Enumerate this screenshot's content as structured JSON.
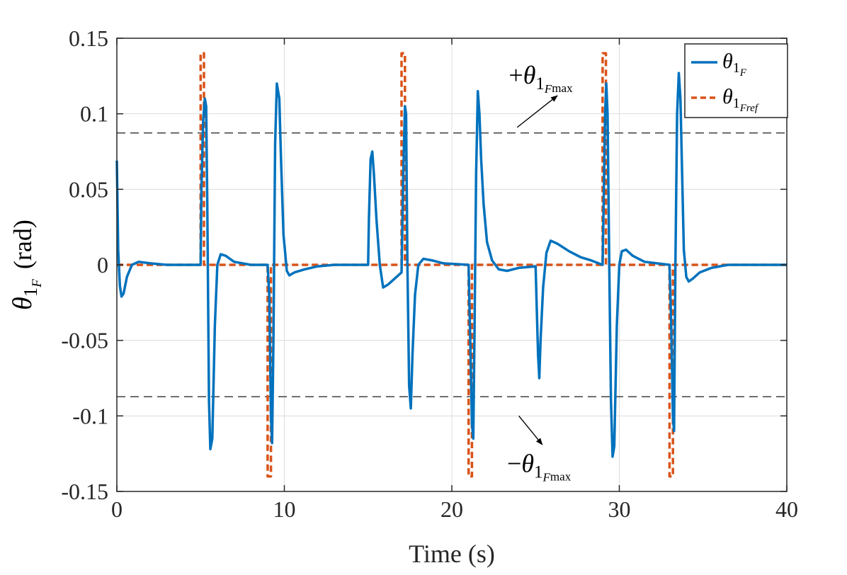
{
  "chart_data": {
    "type": "line",
    "xlabel": "Time (s)",
    "ylabel": "θ1F (rad)",
    "ylabel_parts": {
      "symbol": "θ",
      "sub": "1",
      "subsub": "F",
      "unit": "(rad)"
    },
    "xlim": [
      0,
      40
    ],
    "ylim": [
      -0.15,
      0.15
    ],
    "xticks": [
      0,
      10,
      20,
      30,
      40
    ],
    "xtick_labels": [
      "0",
      "10",
      "20",
      "30",
      "40"
    ],
    "yticks": [
      0.15,
      0.1,
      0.05,
      0,
      -0.05,
      -0.1,
      -0.15
    ],
    "ytick_labels": [
      "0.15",
      "0.1",
      "0.05",
      "0",
      "-0.05",
      "-0.1",
      "-0.15"
    ],
    "grid": true,
    "legend_position": "top-right",
    "colors": {
      "actual": "#0072BD",
      "reference": "#D95319",
      "limit": "#404040",
      "annotation": "#000000"
    },
    "series": [
      {
        "name": "θ1F",
        "legend_parts": {
          "symbol": "θ",
          "sub": "1",
          "subsub": "F"
        },
        "style": "solid",
        "points": [
          [
            0.0,
            0.069
          ],
          [
            0.08,
            0.01
          ],
          [
            0.18,
            -0.014
          ],
          [
            0.28,
            -0.021
          ],
          [
            0.4,
            -0.019
          ],
          [
            0.6,
            -0.008
          ],
          [
            0.9,
            0.0
          ],
          [
            1.3,
            0.002
          ],
          [
            2.0,
            0.001
          ],
          [
            3.0,
            0.0
          ],
          [
            5.0,
            0.0
          ],
          [
            5.05,
            0.05
          ],
          [
            5.15,
            0.095
          ],
          [
            5.25,
            0.11
          ],
          [
            5.33,
            0.105
          ],
          [
            5.4,
            0.04
          ],
          [
            5.5,
            -0.09
          ],
          [
            5.58,
            -0.122
          ],
          [
            5.7,
            -0.115
          ],
          [
            5.85,
            -0.04
          ],
          [
            6.0,
            0.0
          ],
          [
            6.2,
            0.007
          ],
          [
            6.5,
            0.006
          ],
          [
            7.0,
            0.002
          ],
          [
            8.0,
            0.0
          ],
          [
            9.0,
            0.0
          ],
          [
            9.1,
            -0.02
          ],
          [
            9.2,
            -0.1
          ],
          [
            9.27,
            -0.118
          ],
          [
            9.35,
            -0.05
          ],
          [
            9.45,
            0.08
          ],
          [
            9.55,
            0.12
          ],
          [
            9.7,
            0.11
          ],
          [
            9.8,
            0.07
          ],
          [
            9.95,
            0.02
          ],
          [
            10.15,
            -0.004
          ],
          [
            10.3,
            -0.007
          ],
          [
            10.6,
            -0.005
          ],
          [
            11.2,
            -0.003
          ],
          [
            12.0,
            -0.001
          ],
          [
            13.0,
            0.0
          ],
          [
            15.0,
            0.0
          ],
          [
            15.05,
            0.03
          ],
          [
            15.15,
            0.07
          ],
          [
            15.25,
            0.075
          ],
          [
            15.35,
            0.06
          ],
          [
            15.5,
            0.03
          ],
          [
            15.7,
            0.0
          ],
          [
            15.9,
            -0.015
          ],
          [
            16.2,
            -0.013
          ],
          [
            16.5,
            -0.01
          ],
          [
            16.8,
            -0.007
          ],
          [
            17.0,
            -0.005
          ],
          [
            17.1,
            0.06
          ],
          [
            17.2,
            0.105
          ],
          [
            17.27,
            0.1
          ],
          [
            17.35,
            0.0
          ],
          [
            17.45,
            -0.08
          ],
          [
            17.55,
            -0.095
          ],
          [
            17.65,
            -0.06
          ],
          [
            17.8,
            -0.02
          ],
          [
            18.0,
            0.0
          ],
          [
            18.3,
            0.004
          ],
          [
            18.8,
            0.003
          ],
          [
            19.5,
            0.001
          ],
          [
            21.0,
            0.0
          ],
          [
            21.1,
            -0.05
          ],
          [
            21.2,
            -0.105
          ],
          [
            21.28,
            -0.115
          ],
          [
            21.35,
            -0.05
          ],
          [
            21.45,
            0.06
          ],
          [
            21.55,
            0.115
          ],
          [
            21.65,
            0.1
          ],
          [
            21.75,
            0.07
          ],
          [
            21.9,
            0.04
          ],
          [
            22.1,
            0.015
          ],
          [
            22.4,
            0.003
          ],
          [
            22.8,
            -0.003
          ],
          [
            23.3,
            -0.004
          ],
          [
            24.0,
            -0.002
          ],
          [
            25.0,
            -0.001
          ],
          [
            25.05,
            -0.02
          ],
          [
            25.15,
            -0.06
          ],
          [
            25.22,
            -0.075
          ],
          [
            25.3,
            -0.05
          ],
          [
            25.45,
            -0.015
          ],
          [
            25.65,
            0.008
          ],
          [
            25.9,
            0.016
          ],
          [
            26.3,
            0.014
          ],
          [
            27.0,
            0.009
          ],
          [
            27.7,
            0.005
          ],
          [
            28.3,
            0.003
          ],
          [
            29.0,
            0.0
          ],
          [
            29.05,
            0.03
          ],
          [
            29.15,
            0.1
          ],
          [
            29.22,
            0.12
          ],
          [
            29.3,
            0.1
          ],
          [
            29.4,
            0.0
          ],
          [
            29.5,
            -0.09
          ],
          [
            29.6,
            -0.127
          ],
          [
            29.7,
            -0.12
          ],
          [
            29.85,
            -0.04
          ],
          [
            30.0,
            0.0
          ],
          [
            30.15,
            0.009
          ],
          [
            30.4,
            0.01
          ],
          [
            30.8,
            0.006
          ],
          [
            31.5,
            0.002
          ],
          [
            33.0,
            0.0
          ],
          [
            33.1,
            -0.04
          ],
          [
            33.2,
            -0.1
          ],
          [
            33.27,
            -0.11
          ],
          [
            33.35,
            0.0
          ],
          [
            33.45,
            0.1
          ],
          [
            33.55,
            0.127
          ],
          [
            33.65,
            0.11
          ],
          [
            33.75,
            0.06
          ],
          [
            33.85,
            0.01
          ],
          [
            34.0,
            -0.008
          ],
          [
            34.15,
            -0.011
          ],
          [
            34.4,
            -0.009
          ],
          [
            34.8,
            -0.005
          ],
          [
            35.5,
            -0.002
          ],
          [
            36.5,
            0.0
          ],
          [
            40.0,
            0.0
          ]
        ]
      },
      {
        "name": "θ1Fref",
        "legend_parts": {
          "symbol": "θ",
          "sub": "1",
          "subsub": "Fref"
        },
        "style": "dashed",
        "points": [
          [
            0.0,
            0.0
          ],
          [
            5.0,
            0.0
          ],
          [
            5.0,
            0.14
          ],
          [
            5.2,
            0.14
          ],
          [
            5.2,
            0.0
          ],
          [
            9.0,
            0.0
          ],
          [
            9.0,
            -0.14
          ],
          [
            9.2,
            -0.14
          ],
          [
            9.2,
            0.0
          ],
          [
            17.0,
            0.0
          ],
          [
            17.0,
            0.14
          ],
          [
            17.2,
            0.14
          ],
          [
            17.2,
            0.0
          ],
          [
            21.0,
            0.0
          ],
          [
            21.0,
            -0.14
          ],
          [
            21.2,
            -0.14
          ],
          [
            21.2,
            0.0
          ],
          [
            29.0,
            0.0
          ],
          [
            29.0,
            0.14
          ],
          [
            29.2,
            0.14
          ],
          [
            29.2,
            0.0
          ],
          [
            33.0,
            0.0
          ],
          [
            33.0,
            -0.14
          ],
          [
            33.2,
            -0.14
          ],
          [
            33.2,
            0.0
          ],
          [
            40.0,
            0.0
          ]
        ]
      }
    ],
    "limit_lines": [
      {
        "name": "upper-limit",
        "y": 0.0873
      },
      {
        "name": "lower-limit",
        "y": -0.0873
      }
    ],
    "annotations": [
      {
        "name": "upper-limit-label",
        "sign": "+",
        "symbol": "θ",
        "sub": "1",
        "subsub": "F",
        "subup": "max",
        "anchor": [
          23.4,
          0.12
        ],
        "arrow_from": [
          23.9,
          0.091
        ],
        "arrow_to": [
          26.3,
          0.112
        ]
      },
      {
        "name": "lower-limit-label",
        "sign": "−",
        "symbol": "θ",
        "sub": "1",
        "subsub": "F",
        "subup": "max",
        "anchor": [
          23.3,
          -0.137
        ],
        "arrow_from": [
          24.0,
          -0.1
        ],
        "arrow_to": [
          25.4,
          -0.119
        ]
      }
    ]
  }
}
